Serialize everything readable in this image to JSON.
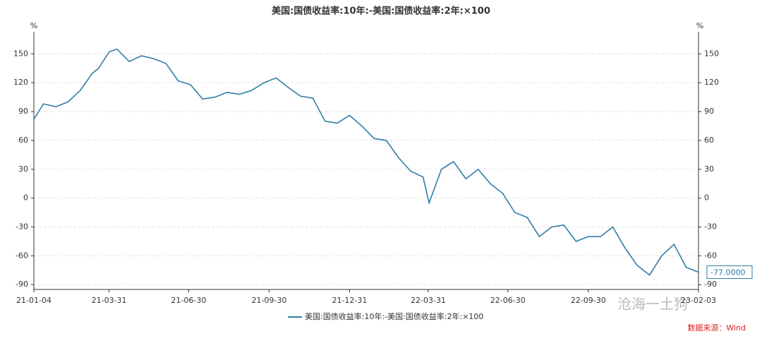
{
  "chart_data": {
    "type": "line",
    "title": "美国:国债收益率:10年:-美国:国债收益率:2年:×100",
    "y_unit": "%",
    "x": [
      "21-01-04",
      "21-01-15",
      "21-01-29",
      "21-02-12",
      "21-02-26",
      "21-03-12",
      "21-03-19",
      "21-03-31",
      "21-04-09",
      "21-04-23",
      "21-05-07",
      "21-05-21",
      "21-06-04",
      "21-06-18",
      "21-07-02",
      "21-07-16",
      "21-07-30",
      "21-08-13",
      "21-08-27",
      "21-09-10",
      "21-09-24",
      "21-10-08",
      "21-10-22",
      "21-11-05",
      "21-11-19",
      "21-12-03",
      "21-12-17",
      "21-12-31",
      "22-01-14",
      "22-01-28",
      "22-02-11",
      "22-02-25",
      "22-03-11",
      "22-03-25",
      "22-04-01",
      "22-04-15",
      "22-04-29",
      "22-05-13",
      "22-05-27",
      "22-06-10",
      "22-06-24",
      "22-07-08",
      "22-07-22",
      "22-08-05",
      "22-08-19",
      "22-09-02",
      "22-09-16",
      "22-09-30",
      "22-10-14",
      "22-10-28",
      "22-11-11",
      "22-11-25",
      "22-12-09",
      "22-12-23",
      "23-01-06",
      "23-01-20",
      "23-02-03"
    ],
    "series": [
      {
        "name": "美国:国债收益率:10年:-美国:国债收益率:2年:×100",
        "color": "#2e7ea6",
        "values": [
          82,
          98,
          95,
          100,
          112,
          130,
          135,
          152,
          155,
          142,
          148,
          145,
          140,
          122,
          118,
          103,
          105,
          110,
          108,
          112,
          120,
          125,
          115,
          106,
          104,
          80,
          78,
          86,
          75,
          62,
          60,
          42,
          28,
          22,
          -5,
          30,
          38,
          20,
          30,
          15,
          5,
          -15,
          -20,
          -40,
          -30,
          -28,
          -45,
          -40,
          -40,
          -30,
          -52,
          -70,
          -80,
          -60,
          -48,
          -72,
          -77
        ],
        "value_labels": [
          null,
          null,
          null,
          null,
          null,
          null,
          null,
          null,
          null,
          null,
          null,
          null,
          null,
          null,
          null,
          null,
          null,
          null,
          null,
          null,
          null,
          null,
          null,
          null,
          null,
          null,
          null,
          null,
          null,
          null,
          null,
          null,
          null,
          null,
          null,
          null,
          null,
          null,
          null,
          null,
          null,
          null,
          null,
          null,
          null,
          null,
          null,
          null,
          null,
          null,
          null,
          null,
          null,
          null,
          null,
          null,
          "-77.0000"
        ]
      }
    ],
    "xlim": [
      "21-01-04",
      "23-02-03"
    ],
    "xticks": [
      "21-01-04",
      "21-03-31",
      "21-06-30",
      "21-09-30",
      "21-12-31",
      "22-03-31",
      "22-06-30",
      "22-09-30",
      "23-02-03"
    ],
    "ylim": [
      -95,
      173
    ],
    "yticks": [
      -90,
      -60,
      -30,
      0,
      30,
      60,
      90,
      120,
      150
    ],
    "grid": true,
    "source": "数据来源：Wind",
    "watermark": "沧海一土狗"
  }
}
